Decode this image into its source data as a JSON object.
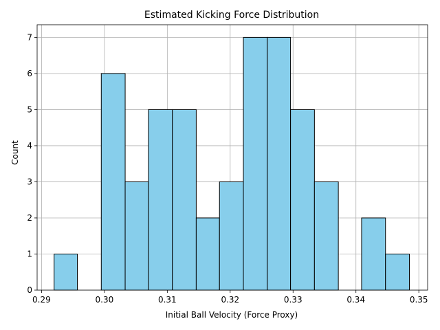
{
  "chart_data": {
    "type": "bar",
    "title": "Estimated Kicking Force Distribution",
    "xlabel": "Initial Ball Velocity (Force Proxy)",
    "ylabel": "Count",
    "xlim": [
      0.2893,
      0.3514
    ],
    "ylim": [
      0,
      7.35
    ],
    "grid": true,
    "bar_color": "#87ceeb",
    "edge_color": "#000000",
    "bin_edges": [
      0.292,
      0.2957,
      0.2995,
      0.3033,
      0.307,
      0.3108,
      0.3146,
      0.3183,
      0.3221,
      0.3259,
      0.3296,
      0.3334,
      0.3372,
      0.3409,
      0.3447,
      0.3485
    ],
    "counts": [
      1,
      0,
      6,
      3,
      5,
      5,
      2,
      3,
      7,
      7,
      5,
      3,
      0,
      2,
      1
    ],
    "x_ticks": [
      {
        "value": 0.29,
        "label": "0.29"
      },
      {
        "value": 0.3,
        "label": "0.30"
      },
      {
        "value": 0.31,
        "label": "0.31"
      },
      {
        "value": 0.32,
        "label": "0.32"
      },
      {
        "value": 0.33,
        "label": "0.33"
      },
      {
        "value": 0.34,
        "label": "0.34"
      },
      {
        "value": 0.35,
        "label": "0.35"
      }
    ],
    "y_ticks": [
      {
        "value": 0,
        "label": "0"
      },
      {
        "value": 1,
        "label": "1"
      },
      {
        "value": 2,
        "label": "2"
      },
      {
        "value": 3,
        "label": "3"
      },
      {
        "value": 4,
        "label": "4"
      },
      {
        "value": 5,
        "label": "5"
      },
      {
        "value": 6,
        "label": "6"
      },
      {
        "value": 7,
        "label": "7"
      }
    ]
  }
}
